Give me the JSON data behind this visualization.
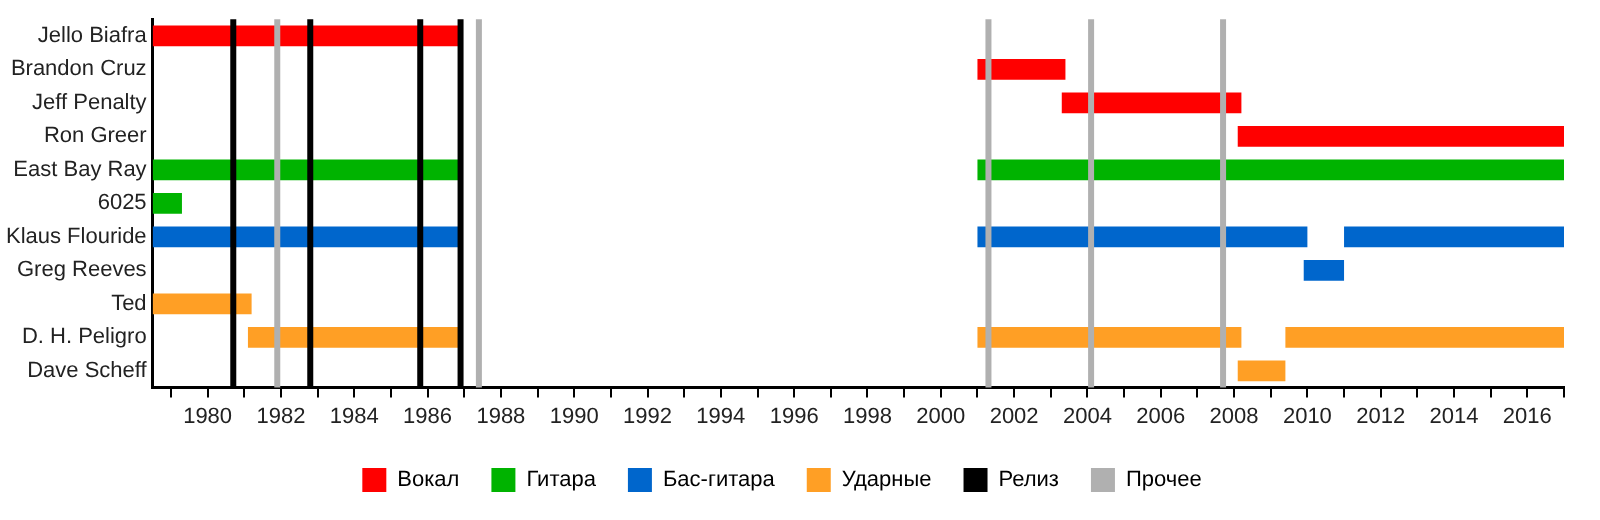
{
  "chart_data": {
    "type": "bar",
    "orientation": "horizontal",
    "categories": [
      "Jello Biafra",
      "Brandon Cruz",
      "Jeff Penalty",
      "Ron Greer",
      "East Bay Ray",
      "6025",
      "Klaus Flouride",
      "Greg Reeves",
      "Ted",
      "D. H. Peligro",
      "Dave Scheff"
    ],
    "series": [
      {
        "name": "Вокал",
        "color": "#ff0000",
        "base": [
          1978.5,
          2001.0,
          2003.3,
          2008.1,
          null,
          null,
          null,
          null,
          null,
          null,
          null
        ],
        "values": [
          8.4,
          2.4,
          4.9,
          8.9,
          null,
          null,
          null,
          null,
          null,
          null,
          null
        ]
      },
      {
        "name": "Гитара",
        "color": "#00b300",
        "base": [
          null,
          null,
          null,
          null,
          1978.5,
          1978.5,
          null,
          null,
          null,
          null,
          null
        ],
        "values": [
          null,
          null,
          null,
          null,
          8.4,
          0.8,
          null,
          null,
          null,
          null,
          null
        ]
      },
      {
        "color": "#00b300",
        "base": [
          null,
          null,
          null,
          null,
          2001.0,
          null,
          null,
          null,
          null,
          null,
          null
        ],
        "values": [
          null,
          null,
          null,
          null,
          16.0,
          null,
          null,
          null,
          null,
          null,
          null
        ]
      },
      {
        "name": "Бас-гитара",
        "color": "#0066cc",
        "base": [
          null,
          null,
          null,
          null,
          null,
          null,
          1978.5,
          2009.9,
          null,
          null,
          null
        ],
        "values": [
          null,
          null,
          null,
          null,
          null,
          null,
          8.4,
          1.1,
          null,
          null,
          null
        ]
      },
      {
        "color": "#0066cc",
        "base": [
          null,
          null,
          null,
          null,
          null,
          null,
          2001.0,
          null,
          null,
          null,
          null
        ],
        "values": [
          null,
          null,
          null,
          null,
          null,
          null,
          9.0,
          null,
          null,
          null,
          null
        ]
      },
      {
        "color": "#0066cc",
        "base": [
          null,
          null,
          null,
          null,
          null,
          null,
          2011.0,
          null,
          null,
          null,
          null
        ],
        "values": [
          null,
          null,
          null,
          null,
          null,
          null,
          6.0,
          null,
          null,
          null,
          null
        ]
      },
      {
        "name": "Ударные",
        "color": "#ff9f25",
        "base": [
          null,
          null,
          null,
          null,
          null,
          null,
          null,
          null,
          1978.5,
          1981.1,
          2008.1
        ],
        "values": [
          null,
          null,
          null,
          null,
          null,
          null,
          null,
          null,
          2.7,
          5.8,
          1.3
        ]
      },
      {
        "color": "#ff9f25",
        "base": [
          null,
          null,
          null,
          null,
          null,
          null,
          null,
          null,
          null,
          2001.0,
          null
        ],
        "values": [
          null,
          null,
          null,
          null,
          null,
          null,
          null,
          null,
          null,
          7.2,
          null
        ]
      },
      {
        "color": "#ff9f25",
        "base": [
          null,
          null,
          null,
          null,
          null,
          null,
          null,
          null,
          null,
          2009.4,
          null
        ],
        "values": [
          null,
          null,
          null,
          null,
          null,
          null,
          null,
          null,
          null,
          7.6,
          null
        ]
      }
    ],
    "ref_lines": [
      {
        "axis": "x",
        "value": 1980.7,
        "label": "Релиз",
        "color": "#000000"
      },
      {
        "axis": "x",
        "value": 1982.8,
        "color": "#000000"
      },
      {
        "axis": "x",
        "value": 1985.8,
        "color": "#000000"
      },
      {
        "axis": "x",
        "value": 1986.9,
        "color": "#000000"
      },
      {
        "axis": "x",
        "value": 1981.9,
        "label": "Прочее",
        "color": "#b0b0b0"
      },
      {
        "axis": "x",
        "value": 1987.4,
        "color": "#b0b0b0"
      },
      {
        "axis": "x",
        "value": 2001.3,
        "color": "#b0b0b0"
      },
      {
        "axis": "x",
        "value": 2004.1,
        "color": "#b0b0b0"
      },
      {
        "axis": "x",
        "value": 2007.7,
        "color": "#b0b0b0"
      }
    ],
    "xlim": [
      1978.5,
      2017.0
    ],
    "xticks": [
      {
        "value": 1979,
        "label": null
      },
      1980,
      {
        "value": 1981,
        "label": null
      },
      1982,
      {
        "value": 1983,
        "label": null
      },
      1984,
      {
        "value": 1985,
        "label": null
      },
      1986,
      {
        "value": 1987,
        "label": null
      },
      1988,
      {
        "value": 1989,
        "label": null
      },
      1990,
      {
        "value": 1991,
        "label": null
      },
      1992,
      {
        "value": 1993,
        "label": null
      },
      1994,
      {
        "value": 1995,
        "label": null
      },
      1996,
      {
        "value": 1997,
        "label": null
      },
      1998,
      {
        "value": 1999,
        "label": null
      },
      2000,
      {
        "value": 2001,
        "label": null
      },
      2002,
      {
        "value": 2003,
        "label": null
      },
      2004,
      {
        "value": 2005,
        "label": null
      },
      2006,
      {
        "value": 2007,
        "label": null
      },
      2008,
      {
        "value": 2009,
        "label": null
      },
      2010,
      {
        "value": 2011,
        "label": null
      },
      2012,
      {
        "value": 2013,
        "label": null
      },
      2014,
      {
        "value": 2015,
        "label": null
      },
      2016,
      {
        "value": 2017,
        "label": null
      }
    ],
    "grid": false,
    "legend": "bottom"
  }
}
